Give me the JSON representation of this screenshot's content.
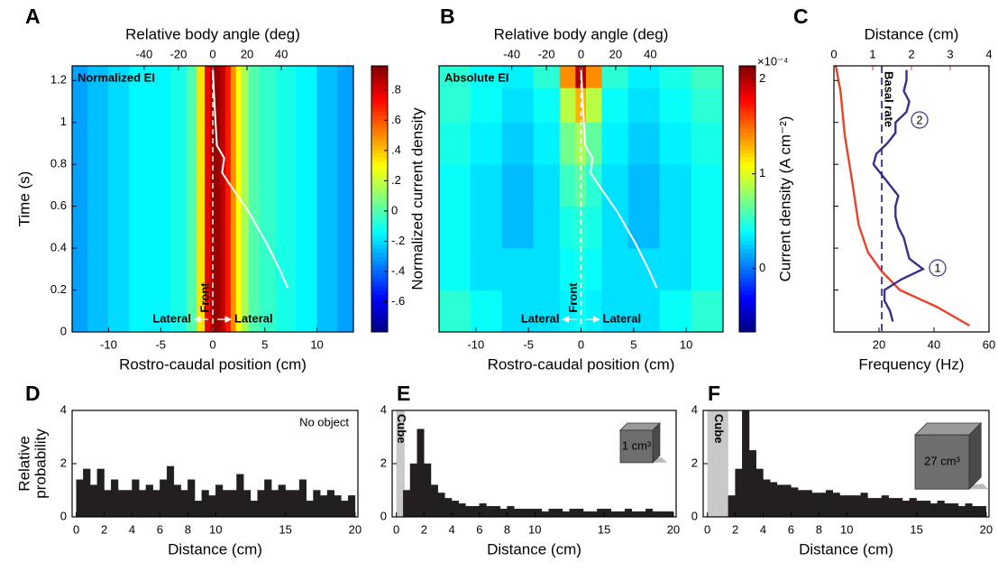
{
  "chart_data": [
    {
      "type": "heatmap",
      "panel": "A",
      "annotation": "Normalized EI",
      "x2label": "Relative body angle (deg)",
      "x2lim": [
        -82,
        82
      ],
      "x2ticks": [
        -40,
        -20,
        0,
        20,
        40
      ],
      "xlabel": "Rostro-caudal position (cm)",
      "xlim": [
        -13.5,
        13.5
      ],
      "xticks": [
        -10,
        -5,
        0,
        5,
        10
      ],
      "ylabel": "Time (s)",
      "ylim": [
        0,
        1.27
      ],
      "yticks": [
        0,
        0.2,
        0.4,
        0.6,
        0.8,
        1,
        1.2
      ],
      "x": [
        -13,
        -11,
        -9,
        -7,
        -5,
        -3,
        -2,
        -1,
        -0.5,
        0,
        0.5,
        1,
        1.5,
        2,
        2.5,
        3,
        4,
        5,
        7,
        9,
        11,
        13
      ],
      "z": [
        -0.3,
        -0.25,
        -0.2,
        -0.15,
        -0.15,
        -0.1,
        0.0,
        0.35,
        0.75,
        0.9,
        0.92,
        0.85,
        0.7,
        0.5,
        0.3,
        0.15,
        0.0,
        -0.05,
        -0.1,
        -0.15,
        -0.25,
        -0.3
      ],
      "colorbar": {
        "label": "Normalized current density",
        "clim": [
          -0.8,
          0.96
        ],
        "ticks": [
          {
            "value": -0.6,
            "label": "-.6"
          },
          {
            "value": -0.4,
            "label": "-.4"
          },
          {
            "value": -0.2,
            "label": "-.2"
          },
          0,
          {
            "value": 0.2,
            "label": ".2"
          },
          {
            "value": 0.4,
            "label": ".4"
          },
          {
            "value": 0.6,
            "label": ".6"
          },
          {
            "value": 0.8,
            "label": ".8"
          }
        ]
      },
      "trajectory": {
        "color": "#ffffff",
        "x": [
          7.2,
          6.5,
          5.2,
          3.5,
          1.7,
          0.9,
          1.1,
          0.4,
          0.2,
          0
        ],
        "y": [
          0.21,
          0.29,
          0.42,
          0.57,
          0.7,
          0.76,
          0.83,
          0.89,
          1.06,
          1.26
        ]
      },
      "ref_x": 0,
      "front_label": "Front",
      "lateral_labels": [
        "Lateral",
        "Lateral"
      ]
    },
    {
      "type": "heatmap",
      "panel": "B",
      "annotation": "Absolute EI",
      "x2label": "Relative body angle (deg)",
      "x2lim": [
        -82,
        82
      ],
      "x2ticks": [
        -40,
        -20,
        0,
        20,
        40
      ],
      "xlabel": "Rostro-caudal position (cm)",
      "xlim": [
        -13.5,
        13.5
      ],
      "xticks": [
        -10,
        -5,
        0,
        5,
        10
      ],
      "ylim": [
        0,
        1.27
      ],
      "x": [
        -12,
        -9,
        -6,
        -3,
        -1,
        0,
        1,
        3,
        6,
        9,
        12
      ],
      "y": [
        0.1,
        0.3,
        0.5,
        0.7,
        0.9,
        1.1,
        1.23
      ],
      "z": [
        [
          0.5,
          0.4,
          0.3,
          0.3,
          0.35,
          0.4,
          0.35,
          0.3,
          0.3,
          0.4,
          0.5
        ],
        [
          0.4,
          0.3,
          0.3,
          0.3,
          0.4,
          0.45,
          0.4,
          0.3,
          0.3,
          0.3,
          0.4
        ],
        [
          0.4,
          0.3,
          0.2,
          0.3,
          0.45,
          0.5,
          0.45,
          0.3,
          0.2,
          0.3,
          0.4
        ],
        [
          0.4,
          0.3,
          0.2,
          0.3,
          0.55,
          0.65,
          0.5,
          0.3,
          0.2,
          0.3,
          0.4
        ],
        [
          0.45,
          0.35,
          0.25,
          0.35,
          0.7,
          0.85,
          0.65,
          0.35,
          0.25,
          0.35,
          0.45
        ],
        [
          0.5,
          0.4,
          0.3,
          0.4,
          0.9,
          1.3,
          0.9,
          0.4,
          0.3,
          0.4,
          0.5
        ],
        [
          0.5,
          0.4,
          0.35,
          0.5,
          1.4,
          2.0,
          1.4,
          0.5,
          0.35,
          0.45,
          0.55
        ]
      ],
      "colorbar": {
        "label": "Current density (A cm⁻²)",
        "multiplier": "×10⁻⁴",
        "clim": [
          -0.67,
          2.14
        ],
        "ticks": [
          0,
          1,
          2
        ]
      },
      "trajectory": {
        "color": "#ffffff",
        "x": [
          7.2,
          6.5,
          5.2,
          3.5,
          1.7,
          0.9,
          1.1,
          0.4,
          0.2,
          0
        ],
        "y": [
          0.21,
          0.29,
          0.42,
          0.57,
          0.7,
          0.76,
          0.83,
          0.89,
          1.06,
          1.26
        ]
      },
      "ref_x": 0,
      "front_label": "Front",
      "lateral_labels": [
        "Lateral",
        "Lateral"
      ]
    },
    {
      "type": "line",
      "panel": "C",
      "x2label": "Distance (cm)",
      "x2lim": [
        0,
        4
      ],
      "x2ticks": [
        0,
        1,
        2,
        3,
        4
      ],
      "xlabel": "Frequency (Hz)",
      "xlim": [
        3.6,
        60
      ],
      "xticks": [
        20,
        40,
        60
      ],
      "ylim": [
        0,
        1.27
      ],
      "yticks": [
        0,
        0.2,
        0.4,
        0.6,
        0.8,
        1,
        1.2
      ],
      "ytick_labels": false,
      "series": [
        {
          "color": "#e8412c",
          "axis": "x2",
          "x": [
            3.5,
            2.65,
            1.7,
            1.23,
            0.88,
            0.64,
            0.47,
            0.28,
            0.17,
            0.05
          ],
          "y": [
            0.03,
            0.12,
            0.2,
            0.29,
            0.38,
            0.51,
            0.72,
            0.94,
            1.15,
            1.27
          ]
        },
        {
          "color": "#3a2d8c",
          "x": [
            25,
            24,
            22,
            22,
            28,
            36,
            31,
            30,
            29,
            27,
            26,
            26,
            27,
            24,
            21,
            18,
            19,
            23,
            26,
            26,
            30,
            31,
            29,
            30,
            30
          ],
          "y": [
            0.05,
            0.1,
            0.15,
            0.2,
            0.25,
            0.3,
            0.35,
            0.4,
            0.45,
            0.5,
            0.55,
            0.6,
            0.65,
            0.7,
            0.75,
            0.8,
            0.85,
            0.9,
            0.95,
            1.0,
            1.05,
            1.1,
            1.15,
            1.2,
            1.25
          ]
        }
      ],
      "reference_line": {
        "value": 21,
        "label": "Basal rate"
      },
      "annotations": [
        "1",
        "2"
      ]
    },
    {
      "type": "histogram",
      "panel": "D",
      "annotation": "No object",
      "color": "#231f20",
      "ylabel": [
        "Relative",
        "probability"
      ],
      "xlabel": "Distance (cm)",
      "xlim": [
        -0.3,
        20.2
      ],
      "xticks": [
        0,
        2,
        4,
        6,
        8,
        10,
        15,
        20
      ],
      "ylim": [
        0,
        4
      ],
      "yticks": [
        0,
        2,
        4
      ],
      "bins": [
        0,
        0.5,
        1,
        1.5,
        2,
        2.5,
        3,
        3.5,
        4,
        4.5,
        5,
        5.5,
        6,
        6.5,
        7,
        7.5,
        8,
        8.5,
        9,
        9.5,
        10,
        10.5,
        11,
        11.5,
        12,
        12.5,
        13,
        13.5,
        14,
        14.5,
        15,
        15.5,
        16,
        16.5,
        17,
        17.5,
        18,
        18.5,
        19,
        19.5,
        20
      ],
      "counts": [
        1.4,
        1.8,
        1.2,
        1.8,
        1.0,
        1.4,
        1.0,
        1.0,
        1.4,
        1.0,
        1.2,
        1.0,
        1.4,
        1.9,
        1.2,
        1.0,
        1.4,
        0.6,
        1.0,
        0.8,
        1.2,
        1.0,
        1.0,
        1.6,
        1.0,
        0.6,
        1.0,
        1.4,
        1.0,
        1.2,
        1.0,
        1.0,
        1.4,
        0.6,
        1.0,
        0.8,
        1.0,
        0.8,
        0.6,
        0.8
      ]
    },
    {
      "type": "histogram",
      "panel": "E",
      "color": "#231f20",
      "xlabel": "Distance (cm)",
      "shade": [
        0,
        0.6
      ],
      "shade_label": "Cube",
      "object_label": "1 cm³",
      "xlim": [
        -0.3,
        20.2
      ],
      "xticks": [
        0,
        2,
        4,
        6,
        8,
        10,
        15,
        20
      ],
      "ylim": [
        0,
        4
      ],
      "yticks": [
        0,
        2,
        4
      ],
      "bins": [
        0,
        0.5,
        1,
        1.5,
        2,
        2.5,
        3,
        3.5,
        4,
        4.5,
        5,
        5.5,
        6,
        6.5,
        7,
        7.5,
        8,
        8.5,
        9,
        9.5,
        10,
        10.5,
        11,
        11.5,
        12,
        12.5,
        13,
        13.5,
        14,
        14.5,
        15,
        15.5,
        16,
        16.5,
        17,
        17.5,
        18,
        18.5,
        19,
        19.5,
        20
      ],
      "counts": [
        0,
        1.0,
        2.0,
        3.3,
        2.0,
        1.2,
        0.9,
        0.7,
        0.6,
        0.5,
        0.4,
        0.4,
        0.5,
        0.4,
        0.4,
        0.3,
        0.4,
        0.3,
        0.3,
        0.3,
        0.3,
        0.2,
        0.3,
        0.3,
        0.2,
        0.3,
        0.3,
        0.2,
        0.2,
        0.3,
        0.3,
        0.2,
        0.2,
        0.3,
        0.2,
        0.2,
        0.3,
        0.2,
        0.2,
        0.2
      ]
    },
    {
      "type": "histogram",
      "panel": "F",
      "color": "#231f20",
      "xlabel": "Distance (cm)",
      "shade": [
        0,
        1.5
      ],
      "shade_label": "Cube",
      "object_label": "27 cm³",
      "xlim": [
        -0.3,
        20.2
      ],
      "xticks": [
        0,
        2,
        4,
        6,
        8,
        10,
        15,
        20
      ],
      "ylim": [
        0,
        4
      ],
      "yticks": [
        0,
        2,
        4
      ],
      "bins": [
        0,
        0.5,
        1,
        1.5,
        2,
        2.5,
        3,
        3.5,
        4,
        4.5,
        5,
        5.5,
        6,
        6.5,
        7,
        7.5,
        8,
        8.5,
        9,
        9.5,
        10,
        10.5,
        11,
        11.5,
        12,
        12.5,
        13,
        13.5,
        14,
        14.5,
        15,
        15.5,
        16,
        16.5,
        17,
        17.5,
        18,
        18.5,
        19,
        19.5,
        20
      ],
      "counts": [
        0,
        0,
        0,
        0.8,
        1.8,
        4.0,
        2.5,
        1.8,
        1.4,
        1.3,
        1.2,
        1.2,
        1.1,
        1.0,
        1.0,
        0.9,
        0.9,
        1.0,
        0.9,
        0.8,
        0.8,
        0.8,
        0.9,
        0.7,
        0.7,
        0.8,
        0.7,
        0.7,
        0.6,
        0.7,
        0.6,
        0.6,
        0.5,
        0.6,
        0.5,
        0.5,
        0.4,
        0.5,
        0.4,
        0.4
      ]
    }
  ]
}
